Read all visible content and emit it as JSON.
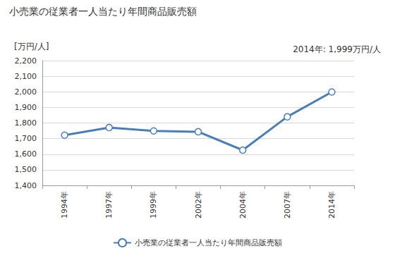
{
  "chart_data": {
    "type": "line",
    "title": "小売業の従業者一人当たり年間商品販売額",
    "y_label": "[万円/人]",
    "annotation": "2014年: 1,999万円/人",
    "categories": [
      "1994年",
      "1997年",
      "1999年",
      "2002年",
      "2004年",
      "2007年",
      "2014年"
    ],
    "series": [
      {
        "name": "小売業の従業者一人当たり年間商品販売額",
        "color": "#4a7ebb",
        "marker": "circle",
        "values": [
          1722,
          1771,
          1749,
          1744,
          1626,
          1840,
          1999
        ]
      }
    ],
    "ylim": [
      1400,
      2200
    ],
    "yticks": [
      {
        "value": 1400,
        "label": "1,400"
      },
      {
        "value": 1500,
        "label": "1,500"
      },
      {
        "value": 1600,
        "label": "1,600"
      },
      {
        "value": 1700,
        "label": "1,700"
      },
      {
        "value": 1800,
        "label": "1,800"
      },
      {
        "value": 1900,
        "label": "1,900"
      },
      {
        "value": 2000,
        "label": "2,000"
      },
      {
        "value": 2100,
        "label": "2,100"
      },
      {
        "value": 2200,
        "label": "2,200"
      }
    ],
    "grid": true,
    "legend": "bottom"
  }
}
